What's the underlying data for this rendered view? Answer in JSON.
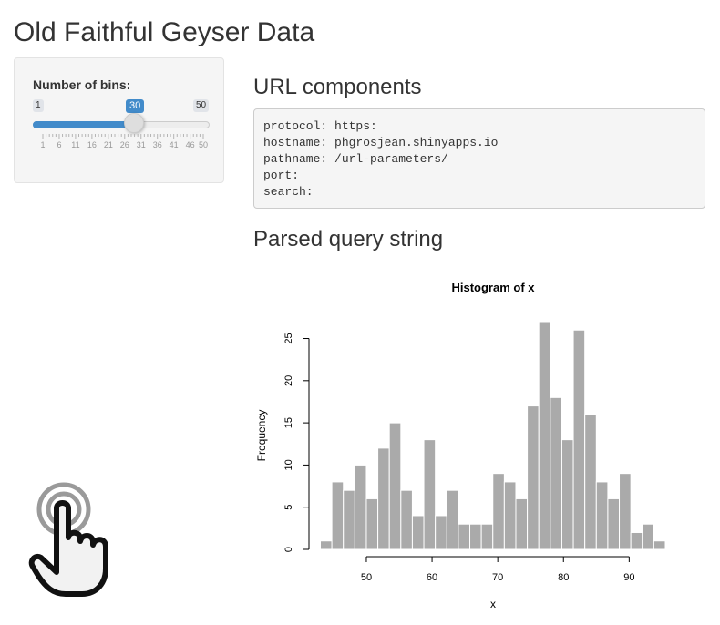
{
  "app": {
    "title": "Old Faithful Geyser Data"
  },
  "sidebar": {
    "slider": {
      "label": "Number of bins:",
      "min_label": "1",
      "max_label": "50",
      "value_label": "30",
      "min": 1,
      "max": 50,
      "value": 30,
      "grid_labels": [
        "1",
        "6",
        "11",
        "16",
        "21",
        "26",
        "31",
        "36",
        "41",
        "46",
        "50"
      ],
      "accent_color": "#428bca"
    }
  },
  "main": {
    "url_heading": "URL components",
    "url_components": [
      {
        "key": "protocol:",
        "value": "https:"
      },
      {
        "key": "hostname:",
        "value": "phgrosjean.shinyapps.io"
      },
      {
        "key": "pathname:",
        "value": "/url-parameters/"
      },
      {
        "key": "port:",
        "value": ""
      },
      {
        "key": "search:",
        "value": ""
      }
    ],
    "query_heading": "Parsed query string"
  },
  "chart_data": {
    "type": "bar",
    "title": "Histogram of x",
    "xlabel": "x",
    "ylabel": "Frequency",
    "bin_width": 1.75,
    "bin_start": 43,
    "values": [
      1,
      8,
      7,
      10,
      6,
      12,
      15,
      7,
      4,
      13,
      4,
      7,
      3,
      3,
      3,
      9,
      8,
      6,
      17,
      27,
      18,
      13,
      26,
      16,
      8,
      6,
      9,
      2,
      3,
      1
    ],
    "xticks": [
      50,
      60,
      70,
      80,
      90
    ],
    "yticks": [
      0,
      5,
      10,
      15,
      20,
      25
    ],
    "xlim": [
      43,
      95.5
    ],
    "ylim": [
      0,
      27
    ],
    "bar_color": "#aaaaaa",
    "grid": false
  },
  "overlay": {
    "pointer_icon": "hand-pointer-icon"
  }
}
